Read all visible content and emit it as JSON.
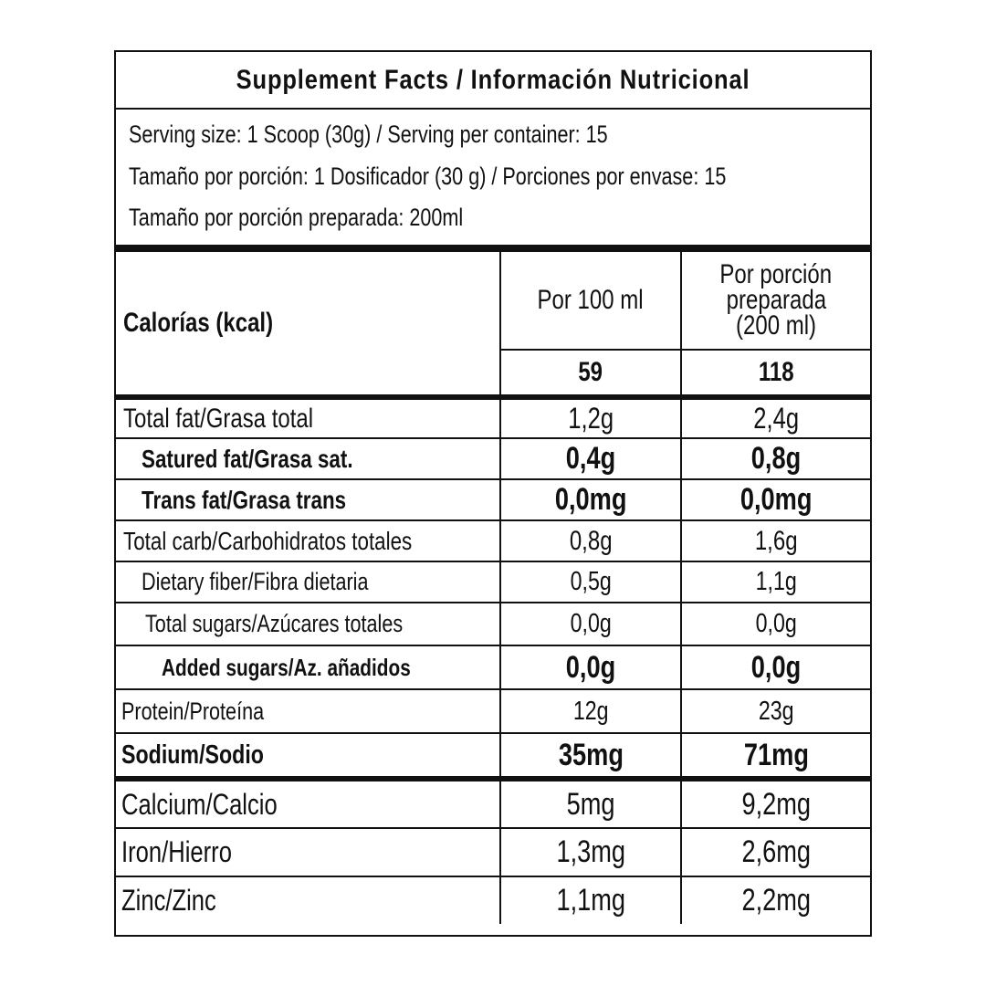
{
  "title": "Supplement Facts / Información Nutricional",
  "serving": [
    "Serving size: 1 Scoop (30g) / Serving per container: 15",
    "Tamaño por porción: 1 Dosificador (30 g) / Porciones por envase: 15",
    "Tamaño por porción preparada: 200ml"
  ],
  "calories": {
    "label": "Calorías (kcal)",
    "col1_header": "Por 100 ml",
    "col2_header": [
      "Por porción",
      "preparada",
      "(200 ml)"
    ],
    "per_100ml": "59",
    "per_serving": "118"
  },
  "nutrients": [
    {
      "label": "Total fat/Grasa total",
      "per_100ml": "1,2g",
      "per_serving": "2,4g"
    },
    {
      "label": "Satured fat/Grasa sat.",
      "per_100ml": "0,4g",
      "per_serving": "0,8g"
    },
    {
      "label": "Trans fat/Grasa trans",
      "per_100ml": "0,0mg",
      "per_serving": "0,0mg"
    },
    {
      "label": "Total carb/Carbohidratos totales",
      "per_100ml": "0,8g",
      "per_serving": "1,6g"
    },
    {
      "label": "Dietary fiber/Fibra dietaria",
      "per_100ml": "0,5g",
      "per_serving": "1,1g"
    },
    {
      "label": "Total sugars/Azúcares totales",
      "per_100ml": "0,0g",
      "per_serving": "0,0g"
    },
    {
      "label": "Added sugars/Az. añadidos",
      "per_100ml": "0,0g",
      "per_serving": "0,0g"
    },
    {
      "label": "Protein/Proteína",
      "per_100ml": "12g",
      "per_serving": "23g"
    },
    {
      "label": "Sodium/Sodio",
      "per_100ml": "35mg",
      "per_serving": "71mg"
    },
    {
      "label": "Calcium/Calcio",
      "per_100ml": "5mg",
      "per_serving": "9,2mg"
    },
    {
      "label": "Iron/Hierro",
      "per_100ml": "1,3mg",
      "per_serving": "2,6mg"
    },
    {
      "label": "Zinc/Zinc",
      "per_100ml": "1,1mg",
      "per_serving": "2,2mg"
    }
  ]
}
